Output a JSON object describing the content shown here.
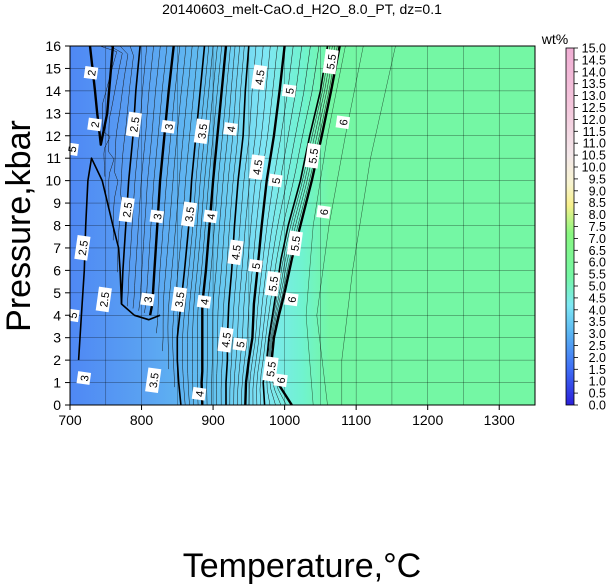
{
  "chart_data": {
    "type": "heatmap",
    "title": "20140603_melt-CaO.d_H2O_8.0_PT, dz=0.1",
    "xlabel": "Temperature,°C",
    "ylabel": "Pressure,kbar",
    "xlim": [
      700,
      1350
    ],
    "ylim": [
      0,
      16
    ],
    "x_ticks": [
      "700",
      "800",
      "900",
      "1000",
      "1100",
      "1200",
      "1300"
    ],
    "y_ticks": [
      "0",
      "1",
      "2",
      "3",
      "4",
      "5",
      "6",
      "7",
      "8",
      "9",
      "10",
      "11",
      "12",
      "13",
      "14",
      "15",
      "16"
    ],
    "grid": true,
    "colorbar": {
      "label": "wt%",
      "range": [
        0,
        15
      ],
      "ticks": [
        "0.0",
        "0.5",
        "1.0",
        "1.5",
        "2.0",
        "2.5",
        "3.0",
        "3.5",
        "4.0",
        "4.5",
        "5.0",
        "5.5",
        "6.0",
        "6.5",
        "7.0",
        "7.5",
        "8.0",
        "8.5",
        "9.0",
        "9.5",
        "10.0",
        "10.5",
        "11.0",
        "11.5",
        "12.0",
        "12.5",
        "13.0",
        "13.5",
        "14.0",
        "14.5",
        "15.0"
      ]
    },
    "plateau_color": "#74f7a4",
    "contours": [
      {
        "level": "2",
        "points": [
          [
            728,
            16
          ],
          [
            735,
            14
          ],
          [
            738,
            13
          ],
          [
            740,
            12.5
          ],
          [
            743,
            11.6
          ],
          [
            752,
            13
          ],
          [
            760,
            16
          ]
        ]
      },
      {
        "level": "2.5",
        "points": [
          [
            712,
            2
          ],
          [
            716,
            4
          ],
          [
            720,
            6
          ],
          [
            722,
            8
          ],
          [
            725,
            10
          ],
          [
            730,
            11
          ],
          [
            745,
            10
          ],
          [
            760,
            8
          ],
          [
            768,
            7
          ],
          [
            770,
            6
          ],
          [
            772,
            4.5
          ],
          [
            790,
            4
          ],
          [
            810,
            3.8
          ],
          [
            826,
            4
          ]
        ]
      },
      {
        "level": "2.5",
        "points": [
          [
            798,
            16
          ],
          [
            792,
            14
          ],
          [
            788,
            12
          ],
          [
            782,
            10
          ],
          [
            778,
            8
          ],
          [
            774,
            6
          ],
          [
            772,
            4.5
          ]
        ]
      },
      {
        "level": "3",
        "points": [
          [
            845,
            16
          ],
          [
            838,
            14
          ],
          [
            832,
            12
          ],
          [
            826,
            10
          ],
          [
            822,
            8
          ],
          [
            818,
            6
          ],
          [
            815,
            4.5
          ],
          [
            812,
            4
          ]
        ]
      },
      {
        "level": "3.5",
        "points": [
          [
            888,
            16
          ],
          [
            882,
            14
          ],
          [
            876,
            12
          ],
          [
            870,
            10
          ],
          [
            866,
            8
          ],
          [
            860,
            6
          ],
          [
            855,
            4.5
          ],
          [
            850,
            3
          ],
          [
            850,
            2
          ],
          [
            852,
            1
          ],
          [
            855,
            0
          ]
        ]
      },
      {
        "level": "4",
        "points": [
          [
            918,
            16
          ],
          [
            912,
            14
          ],
          [
            906,
            12
          ],
          [
            900,
            10
          ],
          [
            895,
            8
          ],
          [
            890,
            6
          ],
          [
            885,
            4.5
          ],
          [
            885,
            3
          ],
          [
            885,
            2
          ],
          [
            885,
            1.5
          ],
          [
            884,
            1
          ],
          [
            885,
            0
          ]
        ]
      },
      {
        "level": "4.5",
        "points": [
          [
            950,
            16
          ],
          [
            945,
            14
          ],
          [
            942,
            12
          ],
          [
            935,
            10
          ],
          [
            930,
            8
          ],
          [
            928,
            7
          ],
          [
            926,
            6
          ],
          [
            922,
            4.5
          ],
          [
            920,
            3
          ],
          [
            920,
            2
          ],
          [
            918,
            1
          ],
          [
            918,
            0
          ]
        ]
      },
      {
        "level": "5",
        "points": [
          [
            1000,
            16
          ],
          [
            993,
            14
          ],
          [
            985,
            12
          ],
          [
            975,
            10
          ],
          [
            968,
            8
          ],
          [
            962,
            6
          ],
          [
            957,
            4.5
          ],
          [
            955,
            3
          ],
          [
            950,
            2
          ],
          [
            946,
            1
          ],
          [
            945,
            0
          ]
        ]
      },
      {
        "level": "5.5",
        "points": [
          [
            1060,
            16
          ],
          [
            1050,
            14
          ],
          [
            1035,
            12
          ],
          [
            1022,
            10
          ],
          [
            1005,
            8
          ],
          [
            995,
            6.5
          ],
          [
            988,
            5
          ],
          [
            983,
            4
          ],
          [
            978,
            3
          ],
          [
            975,
            2
          ],
          [
            970,
            1
          ],
          [
            972,
            0
          ]
        ]
      },
      {
        "level": "6",
        "points": [
          [
            1077,
            16
          ],
          [
            1065,
            14
          ],
          [
            1052,
            12
          ],
          [
            1038,
            10
          ],
          [
            1022,
            8
          ],
          [
            1010,
            6.5
          ],
          [
            1000,
            5
          ],
          [
            992,
            4
          ],
          [
            985,
            3
          ],
          [
            982,
            2
          ],
          [
            990,
            1
          ],
          [
            1010,
            0
          ]
        ]
      }
    ],
    "contour_labels": [
      {
        "text": "2",
        "x": 730,
        "y": 14.8
      },
      {
        "text": "2",
        "x": 735,
        "y": 12.5
      },
      {
        "text": "2.5",
        "x": 790,
        "y": 12.5
      },
      {
        "text": "2.5",
        "x": 780,
        "y": 8.7
      },
      {
        "text": "2.5",
        "x": 718,
        "y": 7.0
      },
      {
        "text": "2.5",
        "x": 748,
        "y": 4.7
      },
      {
        "text": "3",
        "x": 838,
        "y": 12.4
      },
      {
        "text": "3",
        "x": 822,
        "y": 8.4
      },
      {
        "text": "3",
        "x": 809,
        "y": 4.7
      },
      {
        "text": "3.5",
        "x": 885,
        "y": 12.2
      },
      {
        "text": "3.5",
        "x": 867,
        "y": 8.5
      },
      {
        "text": "3.5",
        "x": 853,
        "y": 4.7
      },
      {
        "text": "3.5",
        "x": 817,
        "y": 1.1
      },
      {
        "text": "4",
        "x": 925,
        "y": 12.3
      },
      {
        "text": "4",
        "x": 897,
        "y": 8.4
      },
      {
        "text": "4",
        "x": 888,
        "y": 4.6
      },
      {
        "text": "4",
        "x": 881,
        "y": 0.5
      },
      {
        "text": "4.5",
        "x": 965,
        "y": 14.6
      },
      {
        "text": "4.5",
        "x": 962,
        "y": 10.6
      },
      {
        "text": "4.5",
        "x": 932,
        "y": 6.8
      },
      {
        "text": "4.5",
        "x": 918,
        "y": 2.9
      },
      {
        "text": "5",
        "x": 1007,
        "y": 14.0
      },
      {
        "text": "5",
        "x": 988,
        "y": 10.0
      },
      {
        "text": "5",
        "x": 960,
        "y": 6.2
      },
      {
        "text": "5",
        "x": 938,
        "y": 2.7
      },
      {
        "text": "5.5",
        "x": 1065,
        "y": 15.3
      },
      {
        "text": "5.5",
        "x": 1040,
        "y": 11.1
      },
      {
        "text": "5.5",
        "x": 1015,
        "y": 7.2
      },
      {
        "text": "5.5",
        "x": 984,
        "y": 5.4
      },
      {
        "text": "5.5",
        "x": 981,
        "y": 1.6
      },
      {
        "text": "6",
        "x": 1082,
        "y": 12.6
      },
      {
        "text": "6",
        "x": 1055,
        "y": 8.6
      },
      {
        "text": "6",
        "x": 1010,
        "y": 4.7
      },
      {
        "text": "6",
        "x": 995,
        "y": 1.1
      },
      {
        "text": "5",
        "x": 703,
        "y": 11.4
      },
      {
        "text": "5",
        "x": 704,
        "y": 4.0
      },
      {
        "text": "3",
        "x": 720,
        "y": 1.2
      }
    ]
  }
}
